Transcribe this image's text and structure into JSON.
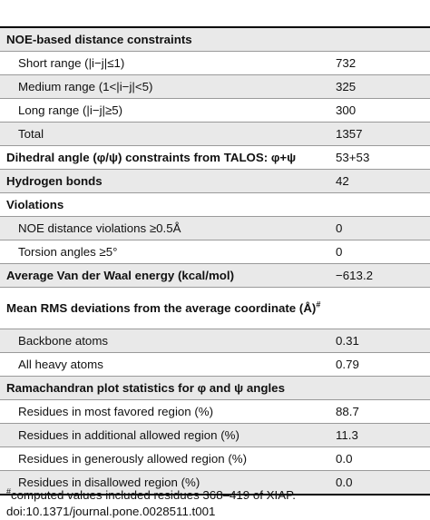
{
  "rows": [
    {
      "label": "NOE-based distance constraints",
      "value": "",
      "bold": true,
      "shade": true
    },
    {
      "label": "Short range (|i−j|≤1)",
      "value": "732",
      "sub": true
    },
    {
      "label": "Medium range (1<|i−j|<5)",
      "value": "325",
      "sub": true,
      "shade": true
    },
    {
      "label": "Long range (|i−j|≥5)",
      "value": "300",
      "sub": true
    },
    {
      "label": "Total",
      "value": "1357",
      "sub": true,
      "shade": true
    },
    {
      "label": "Dihedral angle (φ/ψ) constraints from TALOS: φ+ψ",
      "value": "53+53",
      "bold": true
    },
    {
      "label": "Hydrogen bonds",
      "value": "42",
      "bold": true,
      "shade": true
    },
    {
      "label": "Violations",
      "value": "",
      "bold": true
    },
    {
      "label": "NOE distance violations ≥0.5Å",
      "value": "0",
      "sub": true,
      "shade": true
    },
    {
      "label": "Torsion angles ≥5°",
      "value": "0",
      "sub": true
    },
    {
      "label": "Average Van der Waal energy (kcal/mol)",
      "value": "−613.2",
      "bold": true,
      "shade": true
    },
    {
      "label": "Mean RMS deviations from the average coordinate (Å)",
      "sup": "#",
      "value": "",
      "bold": true,
      "tall": true
    },
    {
      "label": "Backbone atoms",
      "value": "0.31",
      "sub": true,
      "shade": true
    },
    {
      "label": "All heavy atoms",
      "value": "0.79",
      "sub": true
    },
    {
      "label": "Ramachandran plot statistics for φ and ψ angles",
      "value": "",
      "bold": true,
      "shade": true
    },
    {
      "label": "Residues in most favored region (%)",
      "value": "88.7",
      "sub": true
    },
    {
      "label": "Residues in additional allowed region (%)",
      "value": "11.3",
      "sub": true,
      "shade": true
    },
    {
      "label": "Residues in generously allowed region (%)",
      "value": "0.0",
      "sub": true
    },
    {
      "label": "Residues in disallowed region (%)",
      "value": "0.0",
      "sub": true,
      "shade": true
    }
  ],
  "footnote": {
    "marker": "#",
    "text": "computed values included residues 368–419 of XIAP."
  },
  "doi": "doi:10.1371/journal.pone.0028511.t001"
}
